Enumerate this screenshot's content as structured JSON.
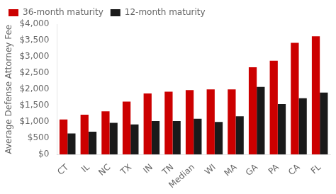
{
  "chart_data": {
    "type": "bar",
    "categories": [
      "CT",
      "IL",
      "NC",
      "TX",
      "IN",
      "TN",
      "Median",
      "WI",
      "MA",
      "GA",
      "PA",
      "CA",
      "FL"
    ],
    "series": [
      {
        "name": "36-month maturity",
        "color": "#cc0000",
        "values": [
          1075,
          1225,
          1325,
          1625,
          1875,
          1925,
          1975,
          2000,
          2000,
          2675,
          2875,
          3425,
          3625
        ]
      },
      {
        "name": "12-month maturity",
        "color": "#1a1a1a",
        "values": [
          650,
          700,
          975,
          925,
          1025,
          1025,
          1100,
          1000,
          1175,
          2075,
          1550,
          1725,
          1900
        ]
      }
    ],
    "ylabel": "Average Defense Attorney Fee",
    "ylim": [
      0,
      4000
    ],
    "yticks": [
      {
        "value": 0,
        "label": "$0"
      },
      {
        "value": 500,
        "label": "$500"
      },
      {
        "value": 1000,
        "label": "$1,000"
      },
      {
        "value": 1500,
        "label": "$1,500"
      },
      {
        "value": 2000,
        "label": "$2,000"
      },
      {
        "value": 2500,
        "label": "$2,500"
      },
      {
        "value": 3000,
        "label": "$3,000"
      },
      {
        "value": 3500,
        "label": "$3,500"
      },
      {
        "value": 4000,
        "label": "$4,000"
      }
    ],
    "grid": false,
    "legend": "upper left"
  }
}
